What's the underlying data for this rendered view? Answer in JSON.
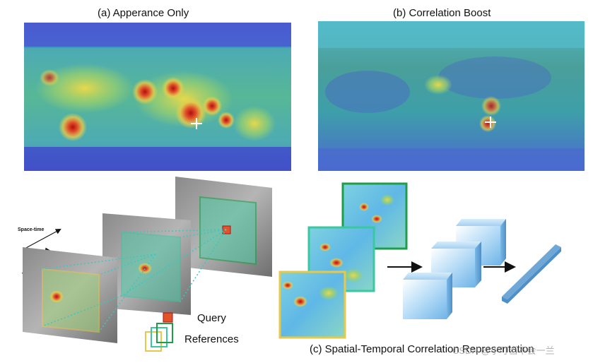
{
  "panels": {
    "a_title": "(a) Apperance Only",
    "b_title": "(b) Correlation Boost",
    "c_title": "(c) Spatial-Temporal Correlation Representation"
  },
  "diagram": {
    "axis_label": "Space-time",
    "legend_query": "Query",
    "legend_references": "References"
  },
  "watermark": "CSDN @小叮当不会一兰",
  "colors": {
    "heatmap_blue": "#3a4fc6",
    "heatmap_teal": "#3fb7a8",
    "heatmap_yellow": "#e8d84a",
    "heatmap_red": "#d83a1e",
    "frame_yellow": "#e6c84a",
    "frame_teal": "#39c8a0",
    "frame_green": "#1f9e4a",
    "cube_blue": "#9fd0f5"
  }
}
